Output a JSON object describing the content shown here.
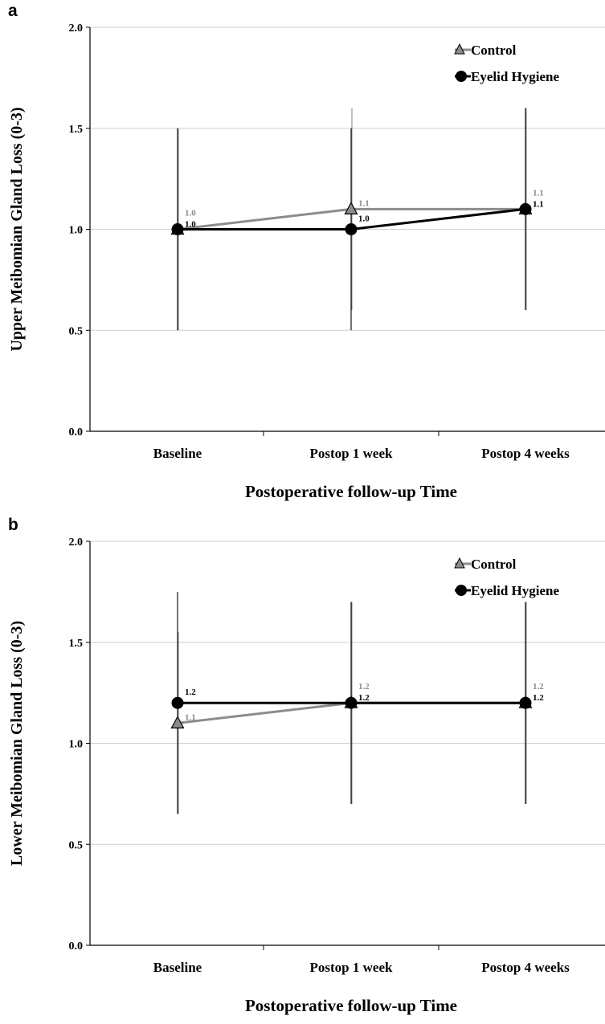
{
  "chart_data": [
    {
      "panel_label": "a",
      "type": "line",
      "title": "",
      "xlabel": "Postoperative follow-up Time",
      "ylabel": "Upper Meibomian Gland Loss (0-3)",
      "categories": [
        "Baseline",
        "Postop 1 week",
        "Postop 4 weeks"
      ],
      "ylim": [
        0,
        2
      ],
      "yticks": [
        "0.0",
        "0.5",
        "1.0",
        "1.5",
        "2.0"
      ],
      "grid": true,
      "legend_position": "top-right",
      "series": [
        {
          "name": "Control",
          "marker": "triangle",
          "color": "#8c8c8c",
          "values": [
            1.0,
            1.1,
            1.1
          ],
          "labels": [
            "1.0",
            "1.1",
            "1.1"
          ],
          "error_low": [
            0.5,
            0.6,
            0.6
          ],
          "error_high": [
            1.5,
            1.6,
            1.6
          ]
        },
        {
          "name": "Eyelid Hygiene",
          "marker": "circle",
          "color": "#000000",
          "values": [
            1.0,
            1.0,
            1.1
          ],
          "labels": [
            "1.0",
            "1.0",
            "1.1"
          ],
          "error_low": [
            0.5,
            0.5,
            0.6
          ],
          "error_high": [
            1.5,
            1.5,
            1.6
          ]
        }
      ]
    },
    {
      "panel_label": "b",
      "type": "line",
      "title": "",
      "xlabel": "Postoperative follow-up Time",
      "ylabel": "Lower Meibomian Gland Loss (0-3)",
      "categories": [
        "Baseline",
        "Postop 1 week",
        "Postop 4 weeks"
      ],
      "ylim": [
        0,
        2
      ],
      "yticks": [
        "0.0",
        "0.5",
        "1.0",
        "1.5",
        "2.0"
      ],
      "grid": true,
      "legend_position": "top-right",
      "series": [
        {
          "name": "Control",
          "marker": "triangle",
          "color": "#8c8c8c",
          "values": [
            1.1,
            1.2,
            1.2
          ],
          "labels": [
            "1.1",
            "1.2",
            "1.2"
          ],
          "error_low": [
            0.65,
            0.7,
            0.7
          ],
          "error_high": [
            1.55,
            1.7,
            1.7
          ]
        },
        {
          "name": "Eyelid Hygiene",
          "marker": "circle",
          "color": "#000000",
          "values": [
            1.2,
            1.2,
            1.2
          ],
          "labels": [
            "1.2",
            "1.2",
            "1.2"
          ],
          "error_low": [
            0.65,
            0.7,
            0.7
          ],
          "error_high": [
            1.75,
            1.7,
            1.7
          ]
        }
      ]
    }
  ]
}
